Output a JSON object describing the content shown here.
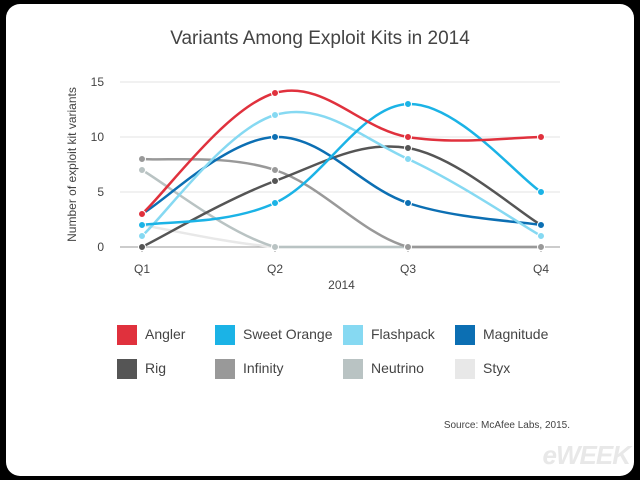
{
  "chart_data": {
    "type": "line",
    "title": "Variants Among Exploit Kits in 2014",
    "xlabel": "2014",
    "ylabel": "Number of exploit kit variants",
    "categories": [
      "Q1",
      "Q2",
      "Q3",
      "Q4"
    ],
    "yticks": [
      "0",
      "5",
      "10",
      "15"
    ],
    "ylim": [
      0,
      15
    ],
    "grid": true,
    "legend_position": "bottom",
    "series": [
      {
        "name": "Angler",
        "color": "#e0313d",
        "values": [
          3,
          14,
          10,
          10
        ]
      },
      {
        "name": "Sweet Orange",
        "color": "#1bb3e6",
        "values": [
          2,
          4,
          13,
          5
        ]
      },
      {
        "name": "Flashpack",
        "color": "#86d9f2",
        "values": [
          1,
          12,
          8,
          1
        ]
      },
      {
        "name": "Magnitude",
        "color": "#0c6fb3",
        "values": [
          3,
          10,
          4,
          2
        ]
      },
      {
        "name": "Rig",
        "color": "#555555",
        "values": [
          0,
          6,
          9,
          2
        ]
      },
      {
        "name": "Infinity",
        "color": "#999999",
        "values": [
          8,
          7,
          0,
          0
        ]
      },
      {
        "name": "Neutrino",
        "color": "#b9c3c3",
        "values": [
          7,
          0,
          0,
          0
        ]
      },
      {
        "name": "Styx",
        "color": "#e8e8e8",
        "values": [
          2,
          0,
          0,
          0
        ]
      }
    ],
    "source": "Source: McAfee Labs, 2015."
  },
  "branding": {
    "logo": "eWEEK"
  }
}
